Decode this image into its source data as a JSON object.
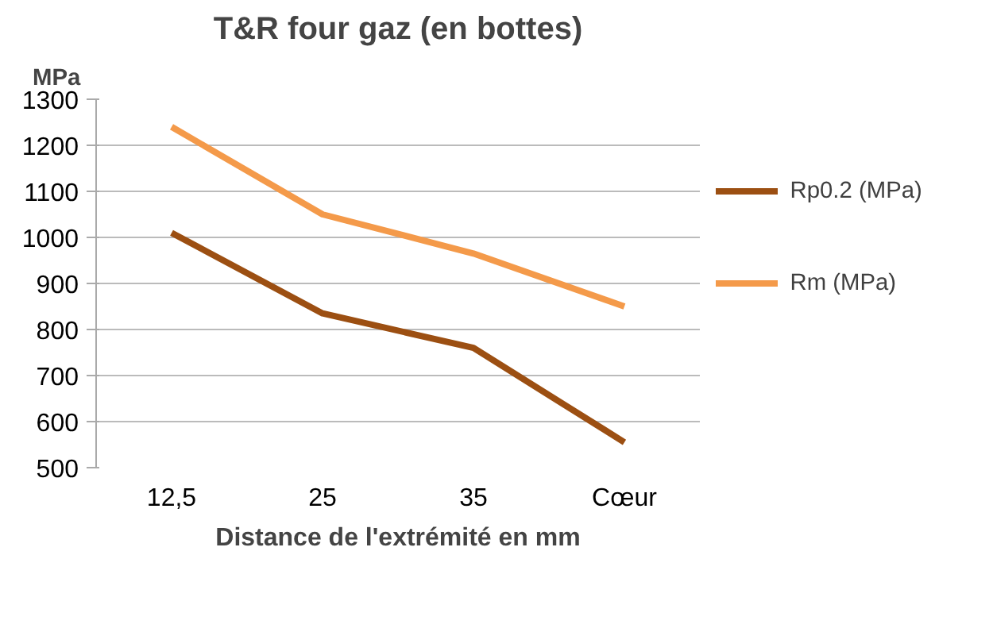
{
  "chart_data": {
    "type": "line",
    "title": "T&R four gaz (en bottes)",
    "ylabel": "MPa",
    "xlabel": "Distance de l'extrémité en mm",
    "categories": [
      "12,5",
      "25",
      "35",
      "Cœur"
    ],
    "series": [
      {
        "name": "Rp0.2 (MPa)",
        "color": "#9c4f12",
        "values": [
          1010,
          835,
          760,
          555
        ]
      },
      {
        "name": "Rm (MPa)",
        "color": "#f49a4a",
        "values": [
          1240,
          1050,
          965,
          850
        ]
      }
    ],
    "ylim": [
      500,
      1300
    ],
    "yticks": [
      500,
      600,
      700,
      800,
      900,
      1000,
      1100,
      1200,
      1300
    ],
    "grid": "y",
    "legend": "right",
    "marker": "none",
    "line_style": "solid"
  }
}
